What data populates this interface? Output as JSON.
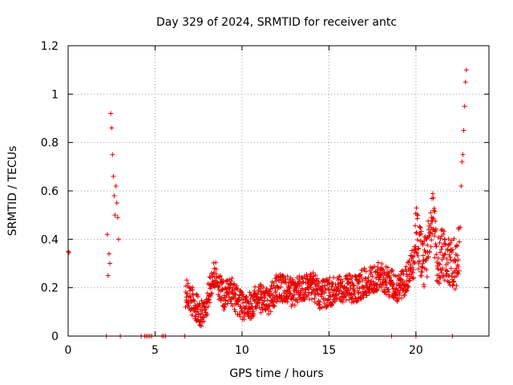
{
  "chart_data": {
    "type": "scatter",
    "title": "Day 329 of 2024, SRMTID for receiver antc",
    "xlabel": "GPS time / hours",
    "ylabel": "SRMTID / TECUs",
    "xlim": [
      0,
      24.2
    ],
    "ylim": [
      0,
      1.2
    ],
    "xticks": [
      "0",
      "5",
      "10",
      "15",
      "20"
    ],
    "xtick_values": [
      0,
      5,
      10,
      15,
      20
    ],
    "yticks": [
      "0",
      "0.2",
      "0.4",
      "0.6",
      "0.8",
      "1",
      "1.2"
    ],
    "ytick_values": [
      0,
      0.2,
      0.4,
      0.6,
      0.8,
      1.0,
      1.2
    ],
    "grid": true,
    "marker": "plus",
    "color": "#e60000",
    "zero_points_x": [
      2.2,
      3.0,
      4.2,
      4.4,
      4.5,
      4.6,
      4.7,
      4.8,
      5.4,
      5.5,
      5.6,
      6.7,
      18.6,
      20.0,
      22.1
    ],
    "anchor_points": [
      [
        0.0,
        0.35
      ],
      [
        0.05,
        0.345
      ],
      [
        2.25,
        0.42
      ],
      [
        2.3,
        0.25
      ],
      [
        2.35,
        0.34
      ],
      [
        2.4,
        0.3
      ],
      [
        2.45,
        0.92
      ],
      [
        2.5,
        0.86
      ],
      [
        2.55,
        0.75
      ],
      [
        2.6,
        0.66
      ],
      [
        2.65,
        0.58
      ],
      [
        2.7,
        0.5
      ],
      [
        2.75,
        0.62
      ],
      [
        2.8,
        0.55
      ],
      [
        2.85,
        0.49
      ],
      [
        2.9,
        0.4
      ],
      [
        22.55,
        0.45
      ],
      [
        22.6,
        0.62
      ],
      [
        22.65,
        0.72
      ],
      [
        22.7,
        0.75
      ],
      [
        22.75,
        0.85
      ],
      [
        22.8,
        0.95
      ],
      [
        22.85,
        1.05
      ],
      [
        22.9,
        1.1
      ]
    ],
    "series_envelope": [
      [
        6.75,
        0.18
      ],
      [
        7.0,
        0.16
      ],
      [
        7.5,
        0.1
      ],
      [
        7.8,
        0.08
      ],
      [
        8.0,
        0.15
      ],
      [
        8.3,
        0.24
      ],
      [
        8.5,
        0.25
      ],
      [
        8.8,
        0.18
      ],
      [
        9.0,
        0.16
      ],
      [
        9.3,
        0.2
      ],
      [
        9.6,
        0.16
      ],
      [
        10.0,
        0.12
      ],
      [
        10.5,
        0.13
      ],
      [
        11.0,
        0.16
      ],
      [
        11.5,
        0.14
      ],
      [
        12.0,
        0.2
      ],
      [
        12.5,
        0.19
      ],
      [
        13.0,
        0.18
      ],
      [
        13.5,
        0.2
      ],
      [
        14.0,
        0.21
      ],
      [
        14.5,
        0.17
      ],
      [
        15.0,
        0.18
      ],
      [
        15.5,
        0.2
      ],
      [
        16.0,
        0.2
      ],
      [
        16.5,
        0.19
      ],
      [
        17.0,
        0.22
      ],
      [
        17.5,
        0.24
      ],
      [
        18.0,
        0.25
      ],
      [
        18.5,
        0.22
      ],
      [
        19.0,
        0.2
      ],
      [
        19.5,
        0.24
      ],
      [
        19.8,
        0.3
      ],
      [
        20.0,
        0.45
      ],
      [
        20.2,
        0.35
      ],
      [
        20.5,
        0.3
      ],
      [
        20.8,
        0.4
      ],
      [
        21.0,
        0.5
      ],
      [
        21.2,
        0.3
      ],
      [
        21.5,
        0.35
      ],
      [
        21.8,
        0.3
      ],
      [
        22.0,
        0.3
      ],
      [
        22.3,
        0.3
      ],
      [
        22.5,
        0.35
      ]
    ],
    "series_spread": 0.12
  }
}
